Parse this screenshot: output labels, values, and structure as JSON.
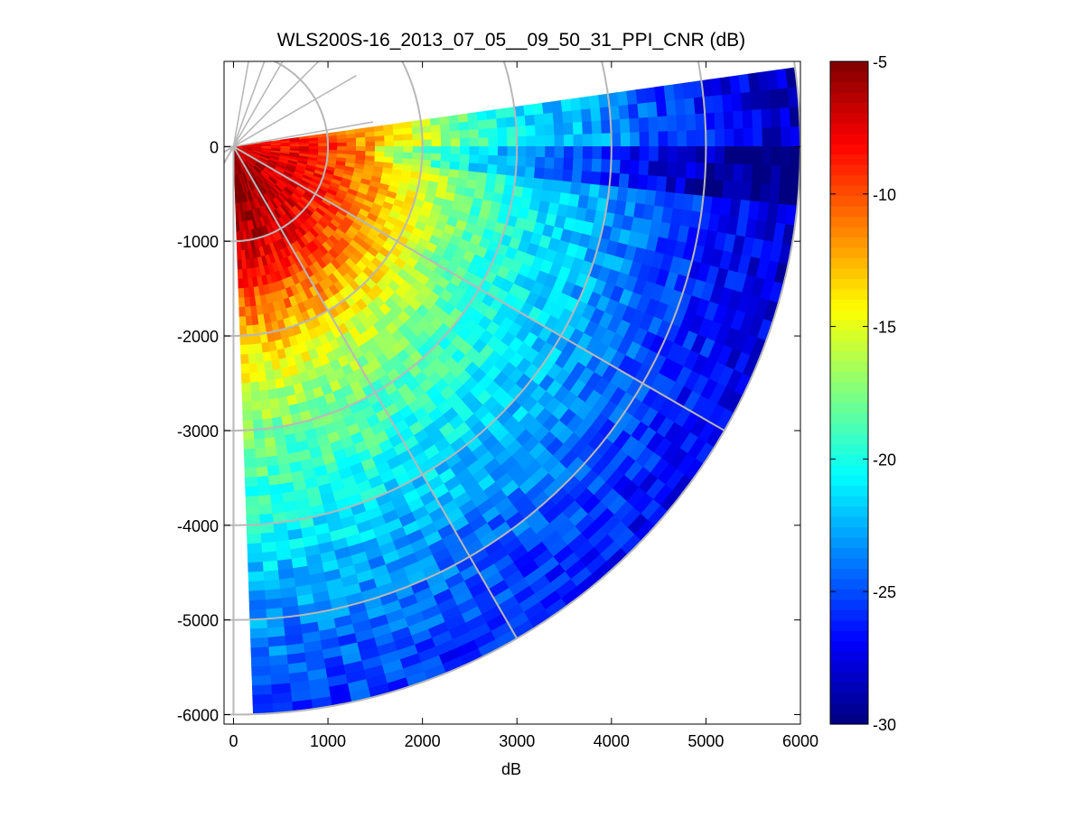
{
  "chart_data": {
    "type": "heatmap",
    "subtype": "polar-ppi-sector",
    "title": "WLS200S-16_2013_07_05__09_50_31_PPI_CNR (dB)",
    "xlabel": "dB",
    "ylabel": "",
    "xlim": [
      -100,
      6000
    ],
    "ylim": [
      -6100,
      900
    ],
    "xticks": [
      0,
      1000,
      2000,
      3000,
      4000,
      5000,
      6000
    ],
    "yticks": [
      0,
      -1000,
      -2000,
      -3000,
      -4000,
      -5000,
      -6000
    ],
    "xtick_labels": [
      "0",
      "1000",
      "2000",
      "3000",
      "4000",
      "5000",
      "6000"
    ],
    "ytick_labels": [
      "0",
      "-1000",
      "-2000",
      "-3000",
      "-4000",
      "-5000",
      "-6000"
    ],
    "colorbar": {
      "min": -30,
      "max": -5,
      "ticks": [
        -5,
        -10,
        -15,
        -20,
        -25,
        -30
      ],
      "tick_labels": [
        "-5",
        "-10",
        "-15",
        "-20",
        "-25",
        "-30"
      ],
      "colormap": "jet"
    },
    "sector": {
      "bearing_start_deg": 82,
      "bearing_end_deg": 178,
      "max_range": 6000,
      "range_gate": 100,
      "bearing_step_deg": 2
    },
    "cnr_profile": {
      "range": [
        0,
        300,
        700,
        1000,
        1500,
        2000,
        2500,
        3000,
        3500,
        4000,
        4500,
        5000,
        5500,
        6000
      ],
      "cnr": [
        -7,
        -6.5,
        -7,
        -8,
        -11,
        -14,
        -17,
        -19,
        -20.5,
        -22,
        -23.5,
        -25,
        -26,
        -27
      ]
    },
    "grid": {
      "rings": [
        1000,
        2000,
        3000,
        4000,
        5000,
        6000
      ],
      "spokes_deg": [
        30,
        60,
        90,
        120,
        150,
        180
      ]
    },
    "colors": {
      "grid": "#b8b8b8",
      "axes": "#000000",
      "background": "#ffffff"
    }
  }
}
